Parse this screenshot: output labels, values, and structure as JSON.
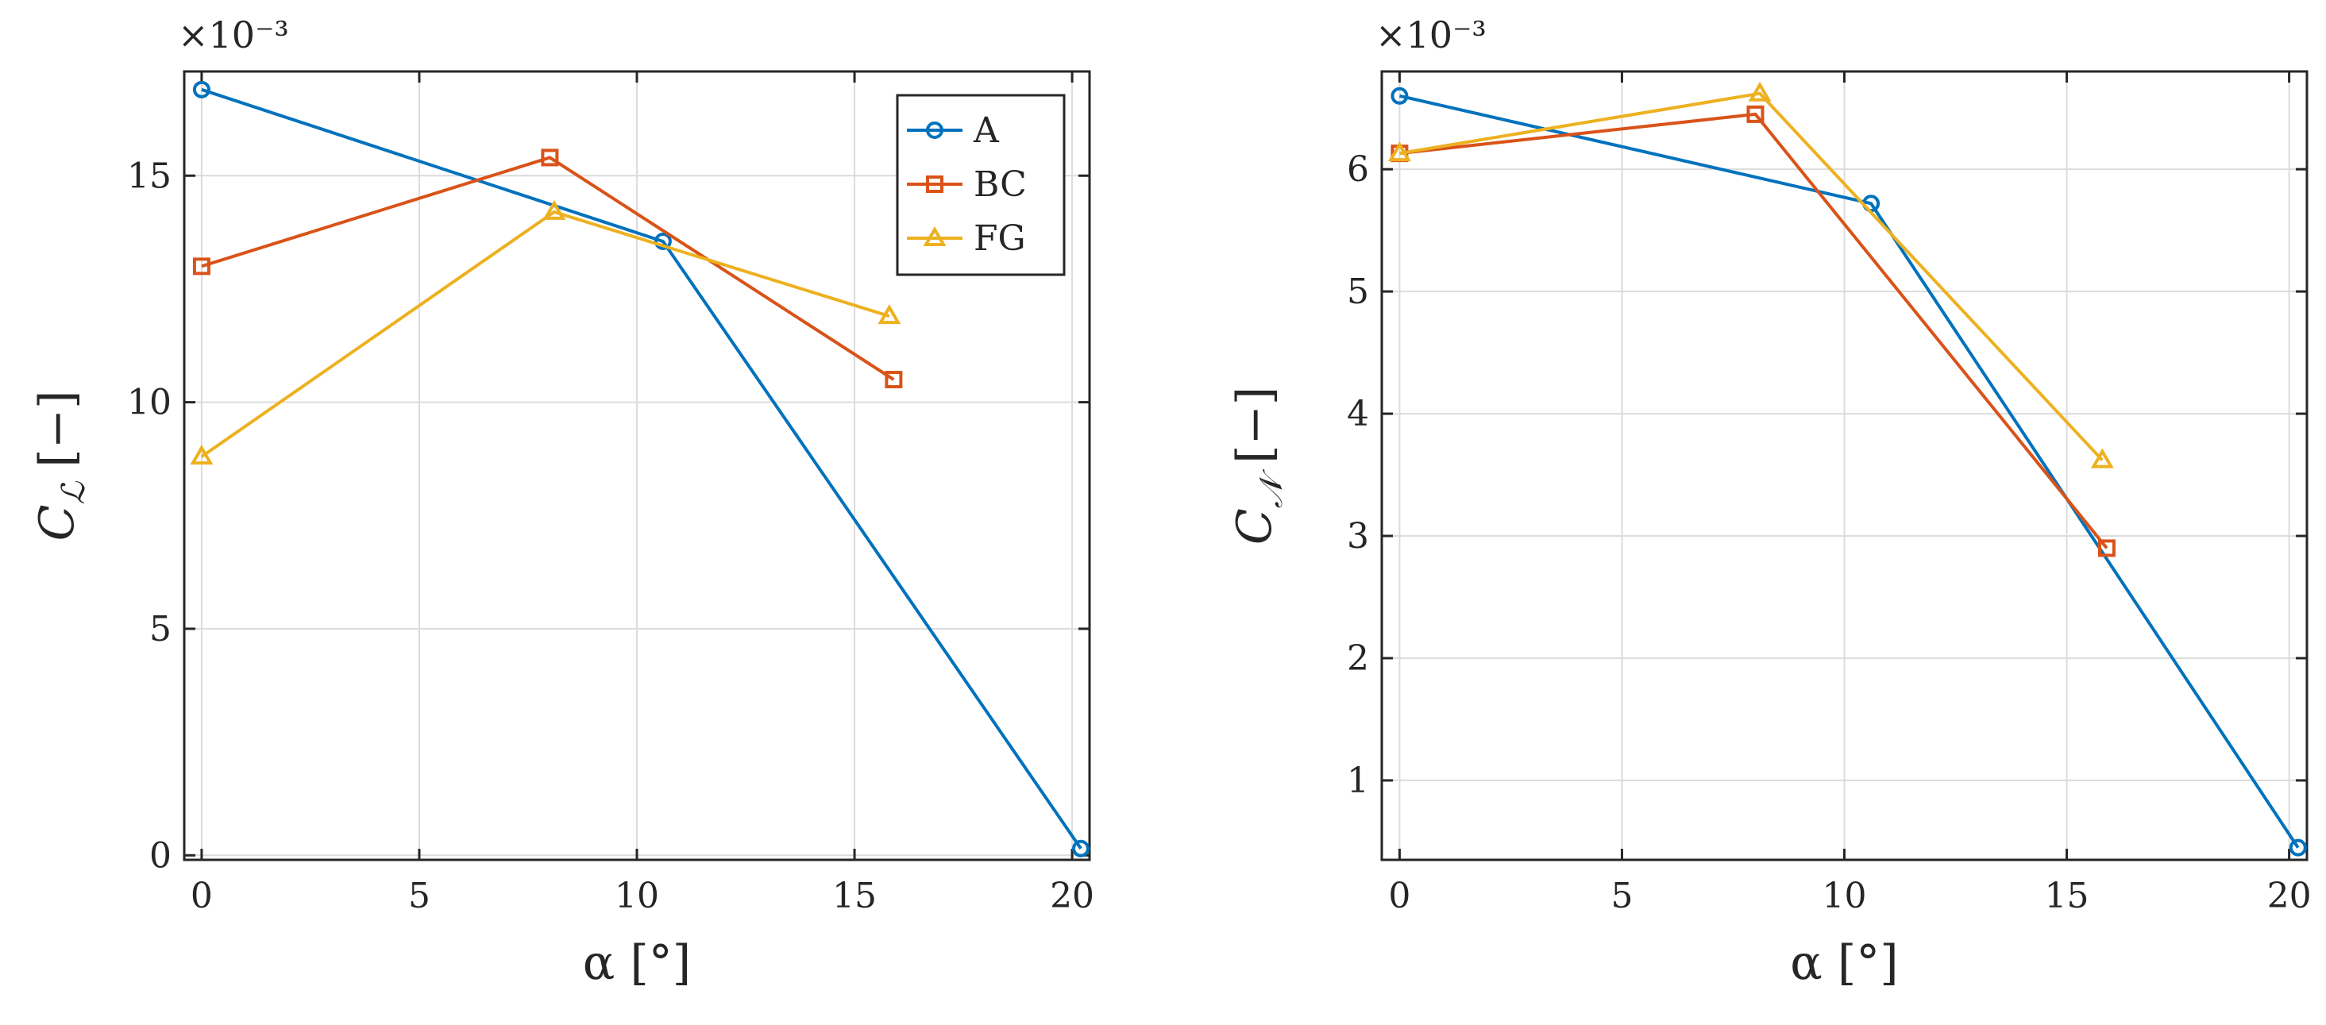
{
  "chart_data": [
    {
      "type": "line",
      "xlabel": "α [°]",
      "ylabel": "C_L [−]",
      "ylabel_main": "C",
      "ylabel_sub": "ℒ",
      "ylabel_unit": "[−]",
      "exponent_label": "×10⁻³",
      "xlim": [
        -0.4,
        20.4
      ],
      "ylim": [
        -0.1,
        17.3
      ],
      "xticks": [
        0,
        5,
        10,
        15,
        20
      ],
      "yticks": [
        0,
        5,
        10,
        15
      ],
      "grid": true,
      "legend": {
        "placement": "top-right",
        "entries": [
          "A",
          "BC",
          "FG"
        ]
      },
      "series": [
        {
          "name": "A",
          "color": "#0072BD",
          "marker": "circle",
          "x": [
            0,
            10.6,
            20.2
          ],
          "y": [
            16.9,
            13.55,
            0.15
          ]
        },
        {
          "name": "BC",
          "color": "#D95319",
          "marker": "square",
          "x": [
            0,
            8.0,
            15.9
          ],
          "y": [
            13.0,
            15.4,
            10.5
          ]
        },
        {
          "name": "FG",
          "color": "#EDB120",
          "marker": "triangle",
          "x": [
            0,
            8.1,
            15.8
          ],
          "y": [
            8.8,
            14.2,
            11.9
          ]
        }
      ]
    },
    {
      "type": "line",
      "xlabel": "α [°]",
      "ylabel": "C_N [−]",
      "ylabel_main": "C",
      "ylabel_sub": "𝒩",
      "ylabel_unit": "[−]",
      "exponent_label": "×10⁻³",
      "xlim": [
        -0.4,
        20.4
      ],
      "ylim": [
        0.35,
        6.8
      ],
      "xticks": [
        0,
        5,
        10,
        15,
        20
      ],
      "yticks": [
        1,
        2,
        3,
        4,
        5,
        6
      ],
      "grid": true,
      "legend": null,
      "series": [
        {
          "name": "A",
          "color": "#0072BD",
          "marker": "circle",
          "x": [
            0,
            10.6,
            20.2
          ],
          "y": [
            6.6,
            5.72,
            0.45
          ]
        },
        {
          "name": "BC",
          "color": "#D95319",
          "marker": "square",
          "x": [
            0,
            8.0,
            15.9
          ],
          "y": [
            6.13,
            6.45,
            2.9
          ]
        },
        {
          "name": "FG",
          "color": "#EDB120",
          "marker": "triangle",
          "x": [
            0,
            8.1,
            15.8
          ],
          "y": [
            6.13,
            6.62,
            3.62
          ]
        }
      ]
    }
  ]
}
